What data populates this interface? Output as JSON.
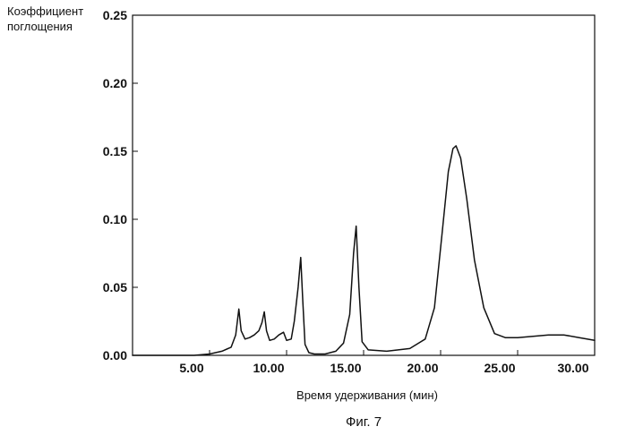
{
  "chart_data": {
    "type": "line",
    "title": "",
    "xlabel": "Время удерживания (мин)",
    "ylabel": "Коэффициент поглощения",
    "ylabel_lines": [
      "Коэффициент",
      "поглощения"
    ],
    "caption": "Фиг. 7",
    "xlim": [
      0,
      30
    ],
    "ylim": [
      0,
      0.25
    ],
    "x_ticks": [
      "5.00",
      "10.00",
      "15.00",
      "20.00",
      "25.00",
      "30.00"
    ],
    "x_tick_values": [
      5,
      10,
      15,
      20,
      25,
      30
    ],
    "y_ticks": [
      "0.00",
      "0.05",
      "0.10",
      "0.15",
      "0.20",
      "0.25"
    ],
    "y_tick_values": [
      0,
      0.05,
      0.1,
      0.15,
      0.2,
      0.25
    ],
    "grid": false,
    "legend": "none",
    "series": [
      {
        "x": [
          0,
          4,
          5,
          5.8,
          6.4,
          6.7,
          6.9,
          7.05,
          7.3,
          7.6,
          7.9,
          8.2,
          8.4,
          8.55,
          8.7,
          8.9,
          9.2,
          9.5,
          9.8,
          10.0,
          10.3,
          10.5,
          10.75,
          10.92,
          11.05,
          11.2,
          11.45,
          11.8,
          12.5,
          13.2,
          13.7,
          14.1,
          14.35,
          14.52,
          14.7,
          14.9,
          15.3,
          16.5,
          18.0,
          19.0,
          19.6,
          20.1,
          20.5,
          20.8,
          21.0,
          21.3,
          21.7,
          22.2,
          22.8,
          23.5,
          24.2,
          25.0,
          26.0,
          27.0,
          28.0,
          29.0,
          30.0
        ],
        "y": [
          0,
          0,
          0.001,
          0.003,
          0.006,
          0.015,
          0.034,
          0.018,
          0.012,
          0.013,
          0.015,
          0.018,
          0.024,
          0.032,
          0.018,
          0.011,
          0.012,
          0.015,
          0.017,
          0.011,
          0.012,
          0.025,
          0.05,
          0.072,
          0.04,
          0.008,
          0.002,
          0.001,
          0.001,
          0.003,
          0.009,
          0.03,
          0.075,
          0.095,
          0.05,
          0.01,
          0.004,
          0.003,
          0.005,
          0.012,
          0.035,
          0.09,
          0.135,
          0.152,
          0.154,
          0.145,
          0.115,
          0.07,
          0.035,
          0.016,
          0.013,
          0.013,
          0.014,
          0.015,
          0.015,
          0.013,
          0.011
        ],
        "color": "#111111"
      }
    ]
  }
}
